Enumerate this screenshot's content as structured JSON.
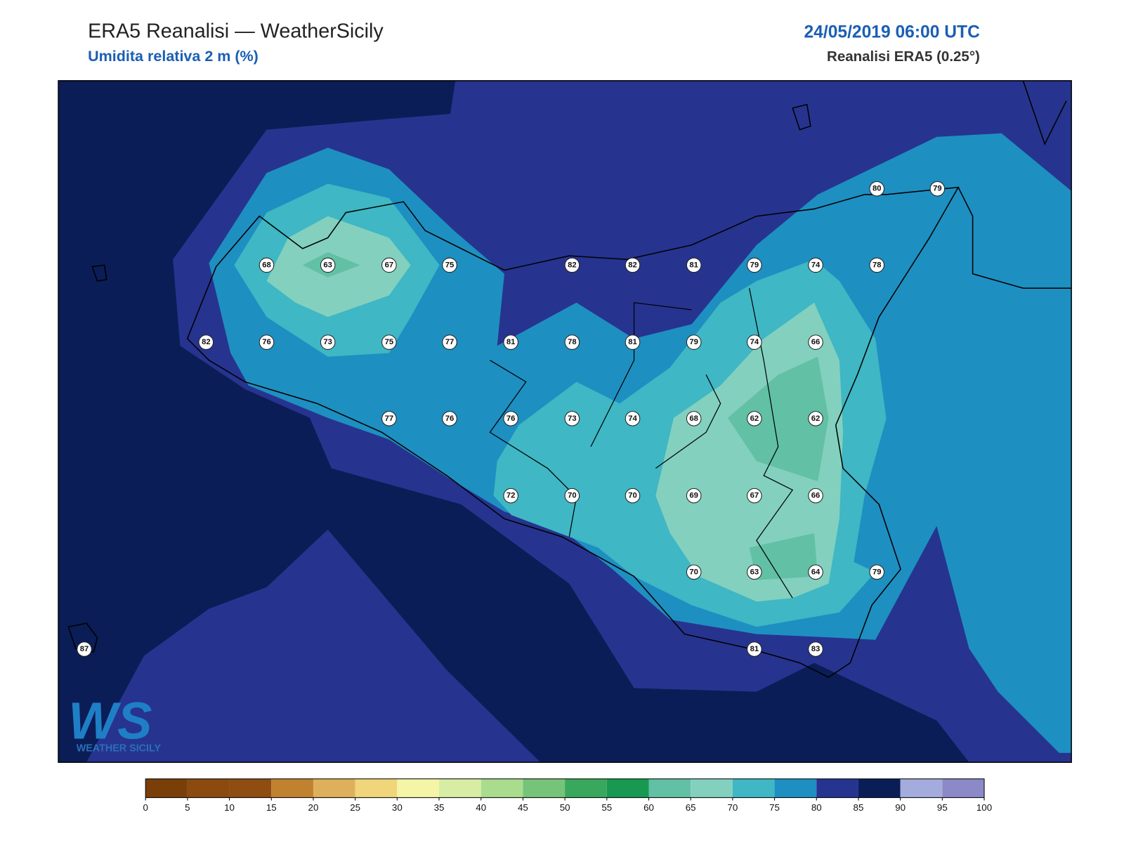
{
  "header": {
    "title": "ERA5 Reanalisi — WeatherSicily",
    "subtitle": "Umidita relativa 2 m (%)",
    "date": "24/05/2019 06:00 UTC",
    "source": "Reanalisi ERA5 (0.25°)"
  },
  "stations": {
    "values": [
      80,
      79,
      68,
      63,
      67,
      75,
      82,
      82,
      81,
      79,
      74,
      78,
      82,
      76,
      73,
      75,
      77,
      81,
      78,
      81,
      79,
      74,
      66,
      77,
      76,
      76,
      73,
      74,
      68,
      62,
      62,
      72,
      70,
      70,
      69,
      67,
      66,
      70,
      63,
      64,
      79,
      87,
      81,
      83
    ]
  },
  "colorbar": {
    "ticks": [
      0,
      5,
      10,
      15,
      20,
      25,
      30,
      35,
      40,
      45,
      50,
      55,
      60,
      65,
      70,
      75,
      80,
      85,
      90,
      95,
      100
    ],
    "colors": [
      "#7a3f08",
      "#8b4a0e",
      "#8f4d12",
      "#c0822f",
      "#dfb05c",
      "#f0d57b",
      "#f5f5a8",
      "#d8eda4",
      "#aadc8e",
      "#76c47a",
      "#3aa85c",
      "#179951",
      "#62c0a4",
      "#83d0bf",
      "#3fb7c4",
      "#1e8fc1",
      "#26348f",
      "#0b1d56",
      "#a3acdc",
      "#8c89c8"
    ]
  },
  "logo": {
    "mark": "WS",
    "text": "WEATHER SICILY"
  }
}
